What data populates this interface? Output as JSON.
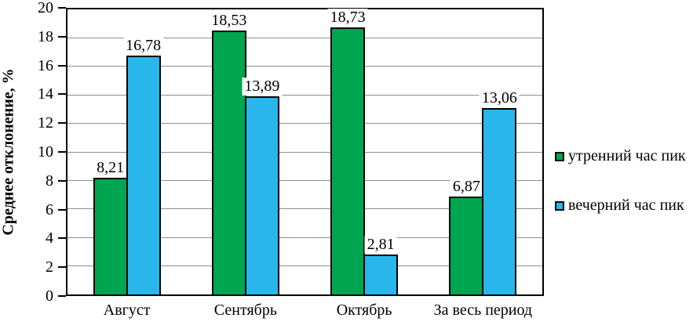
{
  "chart_data": {
    "type": "bar",
    "title": "",
    "xlabel": "",
    "ylabel": "Среднее отклонение, %",
    "categories": [
      "Август",
      "Сентябрь",
      "Октябрь",
      "За весь период"
    ],
    "series": [
      {
        "name": "утренний час пик",
        "color": "#00A550",
        "values": [
          8.21,
          18.53,
          18.73,
          6.87
        ],
        "labels": [
          "8,21",
          "18,53",
          "18,73",
          "6,87"
        ]
      },
      {
        "name": "вечерний час пик",
        "color": "#29B6EB",
        "values": [
          16.78,
          13.89,
          2.81,
          13.06
        ],
        "labels": [
          "16,78",
          "13,89",
          "2,81",
          "13,06"
        ]
      }
    ],
    "ylim": [
      0,
      20
    ],
    "yticks": [
      0,
      2,
      4,
      6,
      8,
      10,
      12,
      14,
      16,
      18,
      20
    ],
    "grid": true,
    "gridline_color": "#8f8f8f",
    "plot_border_color": "#000000",
    "legend_position": "right"
  }
}
